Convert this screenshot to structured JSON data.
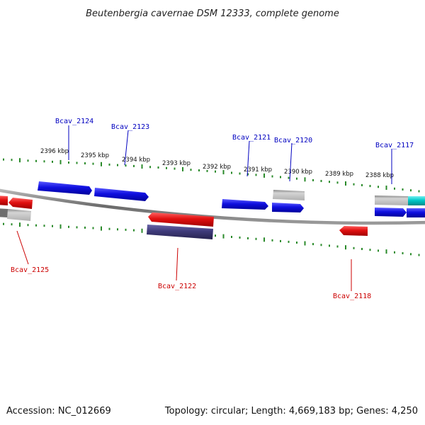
{
  "header": {
    "title": "Beutenbergia cavernae DSM 12333, complete genome"
  },
  "footer": {
    "accession": "Accession: NC_012669",
    "topology": "Topology: circular; Length: 4,669,183 bp; Genes: 4,250"
  },
  "colors": {
    "forward_gene": "#1010e0",
    "reverse_gene": "#e01010",
    "grey_feature": "#aaaaaa",
    "dark_feature": "#3e3a7a",
    "cyan_feature": "#00c8c8",
    "tick": "#2a8a2a",
    "backbone": "#7a7a7a"
  },
  "ruler": {
    "ticks": [
      {
        "label": "2396 kbp"
      },
      {
        "label": "2395 kbp"
      },
      {
        "label": "2394 kbp"
      },
      {
        "label": "2393 kbp"
      },
      {
        "label": "2392 kbp"
      },
      {
        "label": "2391 kbp"
      },
      {
        "label": "2390 kbp"
      },
      {
        "label": "2389 kbp"
      },
      {
        "label": "2388 kbp"
      }
    ]
  },
  "labels": {
    "top": [
      {
        "text": "Bcav_2124"
      },
      {
        "text": "Bcav_2123"
      },
      {
        "text": "Bcav_2121"
      },
      {
        "text": "Bcav_2120"
      },
      {
        "text": "Bcav_2117"
      }
    ],
    "bottom": [
      {
        "text": "Bcav_2125"
      },
      {
        "text": "Bcav_2122"
      },
      {
        "text": "Bcav_2118"
      }
    ]
  }
}
